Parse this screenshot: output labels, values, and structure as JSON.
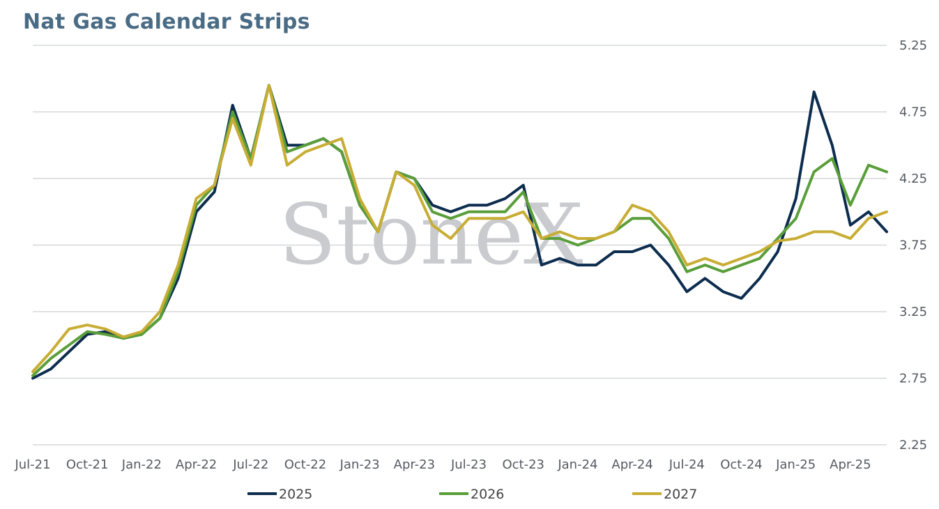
{
  "title": "Nat Gas Calendar Strips",
  "watermark": "StoneX",
  "chart_data": {
    "type": "line",
    "title": "Nat Gas Calendar Strips",
    "xlabel": "",
    "ylabel": "",
    "ylim": [
      2.25,
      5.25
    ],
    "xlim": [
      "2021-07",
      "2025-06"
    ],
    "grid": true,
    "legend_position": "bottom",
    "y_ticks": [
      "5.25",
      "4.75",
      "4.25",
      "3.75",
      "3.25",
      "2.75",
      "2.25"
    ],
    "x_ticks": [
      "Jul-21",
      "Oct-21",
      "Jan-22",
      "Apr-22",
      "Jul-22",
      "Oct-22",
      "Jan-23",
      "Apr-23",
      "Jul-23",
      "Oct-23",
      "Jan-24",
      "Apr-24",
      "Jul-24",
      "Oct-24",
      "Jan-25",
      "Apr-25"
    ],
    "series": [
      {
        "name": "2025",
        "color": "#0d2d4f",
        "points": [
          [
            "2021-07",
            2.75
          ],
          [
            "2021-08",
            2.82
          ],
          [
            "2021-09",
            2.95
          ],
          [
            "2021-10",
            3.08
          ],
          [
            "2021-11",
            3.1
          ],
          [
            "2021-12",
            3.05
          ],
          [
            "2022-01",
            3.08
          ],
          [
            "2022-02",
            3.2
          ],
          [
            "2022-03",
            3.5
          ],
          [
            "2022-04",
            4.0
          ],
          [
            "2022-05",
            4.15
          ],
          [
            "2022-06",
            4.8
          ],
          [
            "2022-07",
            4.4
          ],
          [
            "2022-08",
            4.95
          ],
          [
            "2022-09",
            4.5
          ],
          [
            "2022-10",
            4.5
          ],
          [
            "2022-11",
            4.55
          ],
          [
            "2022-12",
            4.45
          ],
          [
            "2023-01",
            4.05
          ],
          [
            "2023-02",
            3.85
          ],
          [
            "2023-03",
            4.3
          ],
          [
            "2023-04",
            4.25
          ],
          [
            "2023-05",
            4.05
          ],
          [
            "2023-06",
            4.0
          ],
          [
            "2023-07",
            4.05
          ],
          [
            "2023-08",
            4.05
          ],
          [
            "2023-09",
            4.1
          ],
          [
            "2023-10",
            4.2
          ],
          [
            "2023-11",
            3.6
          ],
          [
            "2023-12",
            3.65
          ],
          [
            "2024-01",
            3.6
          ],
          [
            "2024-02",
            3.6
          ],
          [
            "2024-03",
            3.7
          ],
          [
            "2024-04",
            3.7
          ],
          [
            "2024-05",
            3.75
          ],
          [
            "2024-06",
            3.6
          ],
          [
            "2024-07",
            3.4
          ],
          [
            "2024-08",
            3.5
          ],
          [
            "2024-09",
            3.4
          ],
          [
            "2024-10",
            3.35
          ],
          [
            "2024-11",
            3.5
          ],
          [
            "2024-12",
            3.7
          ],
          [
            "2025-01",
            4.1
          ],
          [
            "2025-02",
            4.9
          ],
          [
            "2025-03",
            4.5
          ],
          [
            "2025-04",
            3.9
          ],
          [
            "2025-05",
            4.0
          ],
          [
            "2025-06",
            3.85
          ]
        ]
      },
      {
        "name": "2026",
        "color": "#5a9e3a",
        "points": [
          [
            "2021-07",
            2.77
          ],
          [
            "2021-08",
            2.9
          ],
          [
            "2021-09",
            3.0
          ],
          [
            "2021-10",
            3.1
          ],
          [
            "2021-11",
            3.08
          ],
          [
            "2021-12",
            3.05
          ],
          [
            "2022-01",
            3.08
          ],
          [
            "2022-02",
            3.2
          ],
          [
            "2022-03",
            3.55
          ],
          [
            "2022-04",
            4.05
          ],
          [
            "2022-05",
            4.2
          ],
          [
            "2022-06",
            4.75
          ],
          [
            "2022-07",
            4.4
          ],
          [
            "2022-08",
            4.95
          ],
          [
            "2022-09",
            4.45
          ],
          [
            "2022-10",
            4.5
          ],
          [
            "2022-11",
            4.55
          ],
          [
            "2022-12",
            4.45
          ],
          [
            "2023-01",
            4.05
          ],
          [
            "2023-02",
            3.85
          ],
          [
            "2023-03",
            4.3
          ],
          [
            "2023-04",
            4.25
          ],
          [
            "2023-05",
            4.0
          ],
          [
            "2023-06",
            3.95
          ],
          [
            "2023-07",
            4.0
          ],
          [
            "2023-08",
            4.0
          ],
          [
            "2023-09",
            4.0
          ],
          [
            "2023-10",
            4.15
          ],
          [
            "2023-11",
            3.8
          ],
          [
            "2023-12",
            3.8
          ],
          [
            "2024-01",
            3.75
          ],
          [
            "2024-02",
            3.8
          ],
          [
            "2024-03",
            3.85
          ],
          [
            "2024-04",
            3.95
          ],
          [
            "2024-05",
            3.95
          ],
          [
            "2024-06",
            3.8
          ],
          [
            "2024-07",
            3.55
          ],
          [
            "2024-08",
            3.6
          ],
          [
            "2024-09",
            3.55
          ],
          [
            "2024-10",
            3.6
          ],
          [
            "2024-11",
            3.65
          ],
          [
            "2024-12",
            3.8
          ],
          [
            "2025-01",
            3.95
          ],
          [
            "2025-02",
            4.3
          ],
          [
            "2025-03",
            4.4
          ],
          [
            "2025-04",
            4.05
          ],
          [
            "2025-05",
            4.35
          ],
          [
            "2025-06",
            4.3
          ]
        ]
      },
      {
        "name": "2027",
        "color": "#c8ad34",
        "points": [
          [
            "2021-07",
            2.8
          ],
          [
            "2021-08",
            2.95
          ],
          [
            "2021-09",
            3.12
          ],
          [
            "2021-10",
            3.15
          ],
          [
            "2021-11",
            3.12
          ],
          [
            "2021-12",
            3.06
          ],
          [
            "2022-01",
            3.1
          ],
          [
            "2022-02",
            3.25
          ],
          [
            "2022-03",
            3.6
          ],
          [
            "2022-04",
            4.1
          ],
          [
            "2022-05",
            4.2
          ],
          [
            "2022-06",
            4.7
          ],
          [
            "2022-07",
            4.35
          ],
          [
            "2022-08",
            4.95
          ],
          [
            "2022-09",
            4.35
          ],
          [
            "2022-10",
            4.45
          ],
          [
            "2022-11",
            4.5
          ],
          [
            "2022-12",
            4.55
          ],
          [
            "2023-01",
            4.1
          ],
          [
            "2023-02",
            3.85
          ],
          [
            "2023-03",
            4.3
          ],
          [
            "2023-04",
            4.2
          ],
          [
            "2023-05",
            3.9
          ],
          [
            "2023-06",
            3.8
          ],
          [
            "2023-07",
            3.95
          ],
          [
            "2023-08",
            3.95
          ],
          [
            "2023-09",
            3.95
          ],
          [
            "2023-10",
            4.0
          ],
          [
            "2023-11",
            3.8
          ],
          [
            "2023-12",
            3.85
          ],
          [
            "2024-01",
            3.8
          ],
          [
            "2024-02",
            3.8
          ],
          [
            "2024-03",
            3.85
          ],
          [
            "2024-04",
            4.05
          ],
          [
            "2024-05",
            4.0
          ],
          [
            "2024-06",
            3.85
          ],
          [
            "2024-07",
            3.6
          ],
          [
            "2024-08",
            3.65
          ],
          [
            "2024-09",
            3.6
          ],
          [
            "2024-10",
            3.65
          ],
          [
            "2024-11",
            3.7
          ],
          [
            "2024-12",
            3.78
          ],
          [
            "2025-01",
            3.8
          ],
          [
            "2025-02",
            3.85
          ],
          [
            "2025-03",
            3.85
          ],
          [
            "2025-04",
            3.8
          ],
          [
            "2025-05",
            3.95
          ],
          [
            "2025-06",
            4.0
          ]
        ]
      }
    ]
  }
}
